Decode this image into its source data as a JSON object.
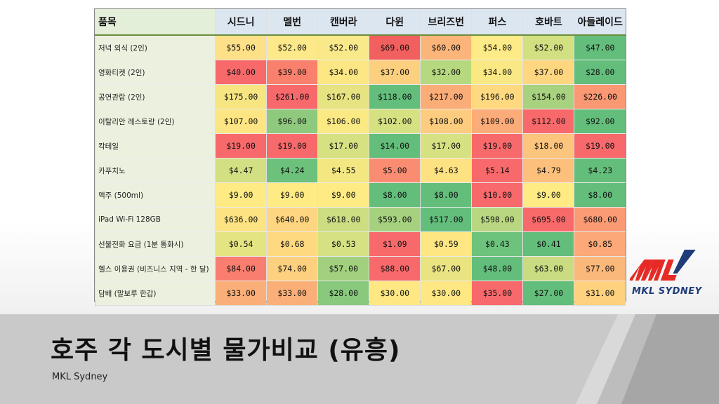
{
  "table": {
    "header": [
      "품목",
      "시드니",
      "멜번",
      "캔버라",
      "다윈",
      "브리즈번",
      "퍼스",
      "호바트",
      "아들레이드"
    ],
    "rows": [
      {
        "item": "저녁 외식 (2인)",
        "values": [
          "$55.00",
          "$52.00",
          "$52.00",
          "$69.00",
          "$60.00",
          "$54.00",
          "$52.00",
          "$47.00"
        ],
        "colors": [
          "#fde088",
          "#fde88a",
          "#f9e98b",
          "#f25f5f",
          "#fbb57b",
          "#fdeb88",
          "#d2e081",
          "#63be7b"
        ]
      },
      {
        "item": "영화티켓 (2인)",
        "values": [
          "$40.00",
          "$39.00",
          "$34.00",
          "$37.00",
          "$32.00",
          "$34.00",
          "$37.00",
          "$28.00"
        ],
        "colors": [
          "#f8696b",
          "#f9806c",
          "#fde684",
          "#fcd07f",
          "#b6d97f",
          "#f9e883",
          "#fed680",
          "#63be7b"
        ]
      },
      {
        "item": "공연관람 (2인)",
        "values": [
          "$175.00",
          "$261.00",
          "$167.00",
          "$118.00",
          "$217.00",
          "$196.00",
          "$154.00",
          "$226.00"
        ],
        "colors": [
          "#f7e582",
          "#f8696b",
          "#e6e382",
          "#63be7b",
          "#fbad78",
          "#fed980",
          "#a8d27f",
          "#fa9874"
        ]
      },
      {
        "item": "이탈리안 레스토랑 (2인)",
        "values": [
          "$107.00",
          "$96.00",
          "$106.00",
          "$102.00",
          "$108.00",
          "$109.00",
          "$112.00",
          "$92.00"
        ],
        "colors": [
          "#fde583",
          "#8ec97d",
          "#fbea84",
          "#d6e182",
          "#fdcc7e",
          "#fcac78",
          "#f8696b",
          "#63be7b"
        ]
      },
      {
        "item": "칵테일",
        "values": [
          "$19.00",
          "$19.00",
          "$17.00",
          "$14.00",
          "$17.00",
          "$19.00",
          "$18.00",
          "$19.00"
        ],
        "colors": [
          "#f8696b",
          "#f8696b",
          "#d6e182",
          "#63be7b",
          "#d6e182",
          "#f8696b",
          "#fcc47c",
          "#f8696b"
        ]
      },
      {
        "item": "카푸치노",
        "values": [
          "$4.47",
          "$4.24",
          "$4.55",
          "$5.00",
          "$4.63",
          "$5.14",
          "$4.79",
          "$4.23"
        ],
        "colors": [
          "#d2df82",
          "#6cc17b",
          "#f3e782",
          "#fa8c72",
          "#fee282",
          "#f8696b",
          "#fdc07c",
          "#63be7b"
        ]
      },
      {
        "item": "맥주 (500ml)",
        "values": [
          "$9.00",
          "$9.00",
          "$9.00",
          "$8.00",
          "$8.00",
          "$10.00",
          "$9.00",
          "$8.00"
        ],
        "colors": [
          "#ffeb84",
          "#ffeb84",
          "#ffeb84",
          "#63be7b",
          "#63be7b",
          "#f8696b",
          "#ffeb84",
          "#63be7b"
        ]
      },
      {
        "item": "iPad Wi-Fi 128GB",
        "values": [
          "$636.00",
          "$640.00",
          "$618.00",
          "$593.00",
          "$517.00",
          "$598.00",
          "$695.00",
          "$680.00"
        ],
        "colors": [
          "#fee382",
          "#fed580",
          "#ccdd82",
          "#a6d27f",
          "#63be7b",
          "#b9d780",
          "#f8696b",
          "#fa9b75"
        ]
      },
      {
        "item": "선불전화 요금 (1분 통화시)",
        "values": [
          "$0.54",
          "$0.68",
          "$0.53",
          "$1.09",
          "$0.59",
          "$0.43",
          "$0.41",
          "$0.85"
        ],
        "colors": [
          "#e5e482",
          "#fed980",
          "#d5e182",
          "#f8696b",
          "#fee683",
          "#6ec37c",
          "#63be7b",
          "#fca878"
        ]
      },
      {
        "item": "헬스 이용권 (비즈니스 지역 - 한 달)",
        "values": [
          "$84.00",
          "$74.00",
          "$57.00",
          "$88.00",
          "$67.00",
          "$48.00",
          "$63.00",
          "$77.00"
        ],
        "colors": [
          "#f97e6f",
          "#fdd07f",
          "#a2d07f",
          "#f8696b",
          "#e9e382",
          "#63be7b",
          "#c9dc81",
          "#fbb87b"
        ]
      },
      {
        "item": "담배 (말보루 한갑)",
        "values": [
          "$33.00",
          "$33.00",
          "$28.00",
          "$30.00",
          "$30.00",
          "$35.00",
          "$27.00",
          "$31.00"
        ],
        "colors": [
          "#fbaf78",
          "#fbaf78",
          "#88c97d",
          "#ffe884",
          "#ffe884",
          "#f8696b",
          "#63be7b",
          "#fed17f"
        ]
      }
    ]
  },
  "logo": {
    "text": "MKL SYDNEY",
    "brand_red": "#e62a26",
    "brand_blue": "#1f3b78"
  },
  "slide": {
    "title": "호주 각 도시별 물가비교 (유흥)",
    "subtitle": "MKL Sydney"
  }
}
